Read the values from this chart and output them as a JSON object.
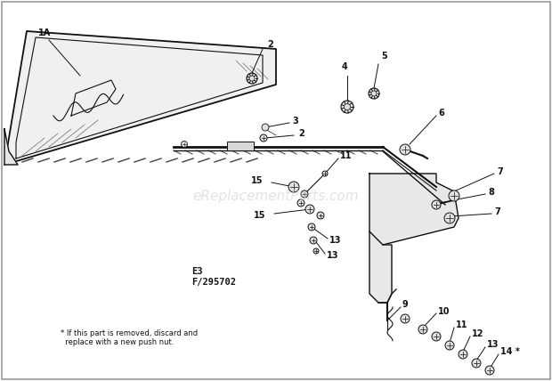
{
  "background_color": "#ffffff",
  "fig_width": 6.2,
  "fig_height": 4.28,
  "dpi": 100,
  "watermark_text": "eReplacementParts.com",
  "watermark_color": "#cccccc",
  "watermark_fontsize": 11,
  "code_text": "E3\nF/295702",
  "code_fontsize": 7.5,
  "footnote_text": "* If this part is removed, discard and\n  replace with a new push nut.",
  "footnote_fontsize": 6,
  "line_color": "#111111",
  "label_fontsize": 7
}
